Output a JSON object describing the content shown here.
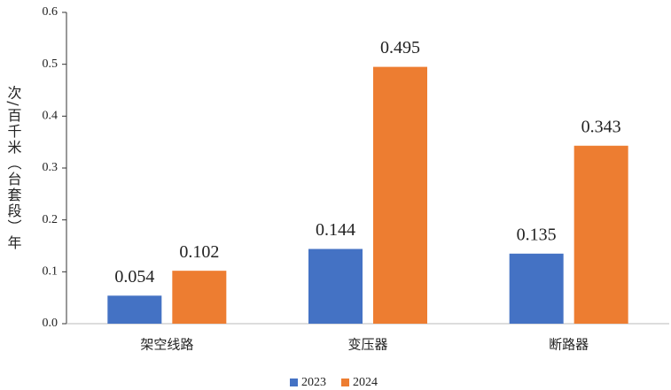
{
  "chart_data": {
    "type": "bar",
    "y_label": "次/百千米（台套段）年",
    "categories": [
      "架空线路",
      "变压器",
      "断路器"
    ],
    "series": [
      {
        "name": "2023",
        "color": "#4472c4",
        "values": [
          0.054,
          0.144,
          0.135
        ]
      },
      {
        "name": "2024",
        "color": "#ed7d31",
        "values": [
          0.102,
          0.495,
          0.343
        ]
      }
    ],
    "ylim": [
      0,
      0.6
    ],
    "yticks": [
      {
        "value": 0,
        "label": "0.0"
      },
      0.1,
      0.2,
      0.3,
      0.4,
      0.5,
      0.6
    ],
    "legend": "bottom"
  }
}
